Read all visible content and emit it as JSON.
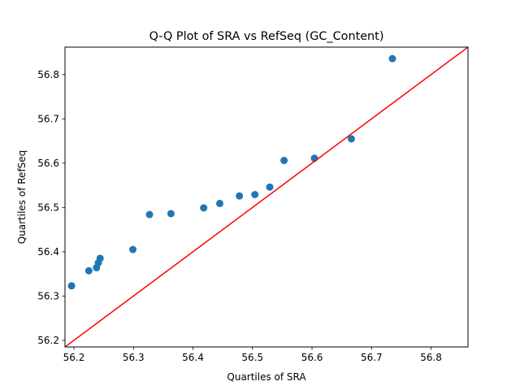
{
  "chart_data": {
    "type": "scatter",
    "title": "Q-Q Plot of SRA vs RefSeq (GC_Content)",
    "xlabel": "Quartiles of SRA",
    "ylabel": "Quartiles of RefSeq",
    "xlim": [
      56.185,
      56.862
    ],
    "ylim": [
      56.185,
      56.862
    ],
    "xticks": [
      "56.2",
      "56.3",
      "56.4",
      "56.5",
      "56.6",
      "56.7",
      "56.8"
    ],
    "yticks": [
      "56.2",
      "56.3",
      "56.4",
      "56.5",
      "56.6",
      "56.7",
      "56.8"
    ],
    "grid": false,
    "series": [
      {
        "marker_color": "#1f77b4",
        "points": [
          [
            56.196,
            56.323
          ],
          [
            56.225,
            56.357
          ],
          [
            56.238,
            56.364
          ],
          [
            56.241,
            56.375
          ],
          [
            56.244,
            56.385
          ],
          [
            56.299,
            56.405
          ],
          [
            56.327,
            56.484
          ],
          [
            56.363,
            56.486
          ],
          [
            56.418,
            56.499
          ],
          [
            56.445,
            56.509
          ],
          [
            56.478,
            56.526
          ],
          [
            56.504,
            56.529
          ],
          [
            56.529,
            56.546
          ],
          [
            56.553,
            56.606
          ],
          [
            56.604,
            56.611
          ],
          [
            56.666,
            56.655
          ],
          [
            56.735,
            56.836
          ]
        ]
      }
    ],
    "reference_line": {
      "color": "#ff0000",
      "from": [
        56.185,
        56.185
      ],
      "to": [
        56.862,
        56.862
      ]
    }
  }
}
